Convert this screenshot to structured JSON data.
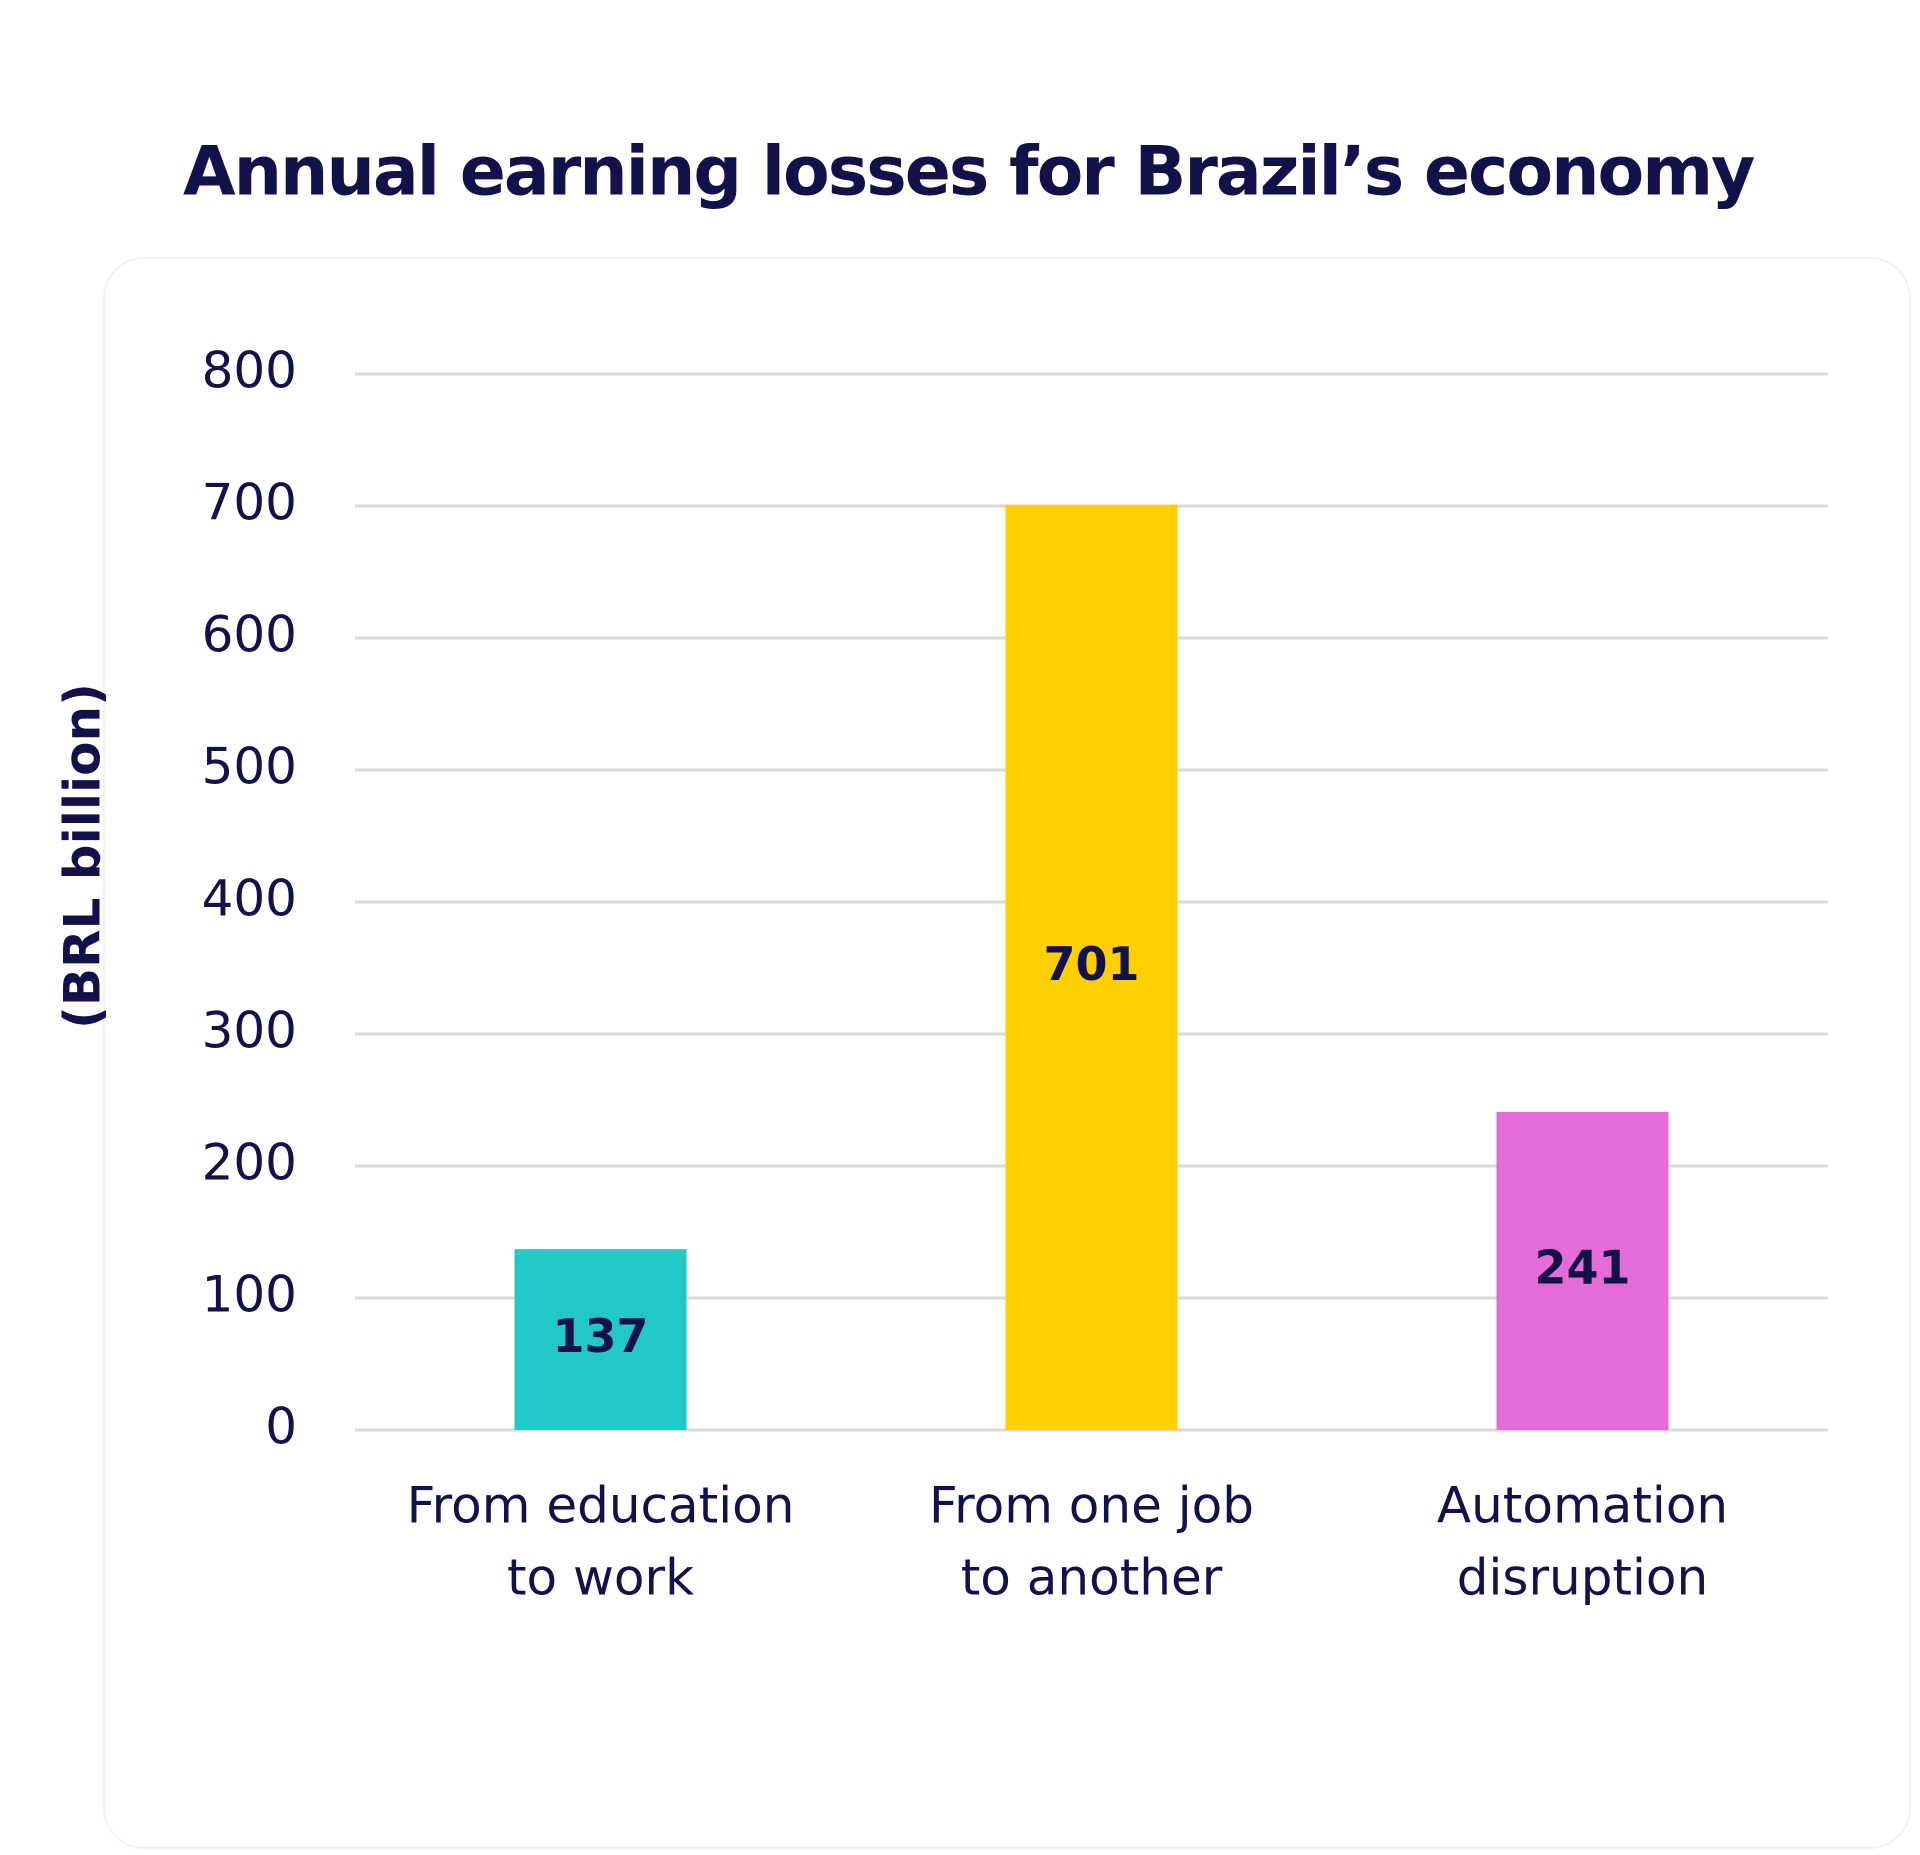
{
  "chart_data": {
    "type": "bar",
    "title": "Annual earning losses for Brazil’s economy",
    "y_label": "(BRL  billion)",
    "categories": [
      [
        "From education",
        "to work"
      ],
      [
        "From one job",
        "to another"
      ],
      [
        "Automation",
        "disruption"
      ]
    ],
    "values": [
      137,
      701,
      241
    ],
    "colors": [
      "#22c7c7",
      "#ffcf00",
      "#e56bd6"
    ],
    "ylim": [
      0,
      800
    ],
    "yticks": [
      0,
      100,
      200,
      300,
      400,
      500,
      600,
      700,
      800
    ],
    "grid": true
  }
}
